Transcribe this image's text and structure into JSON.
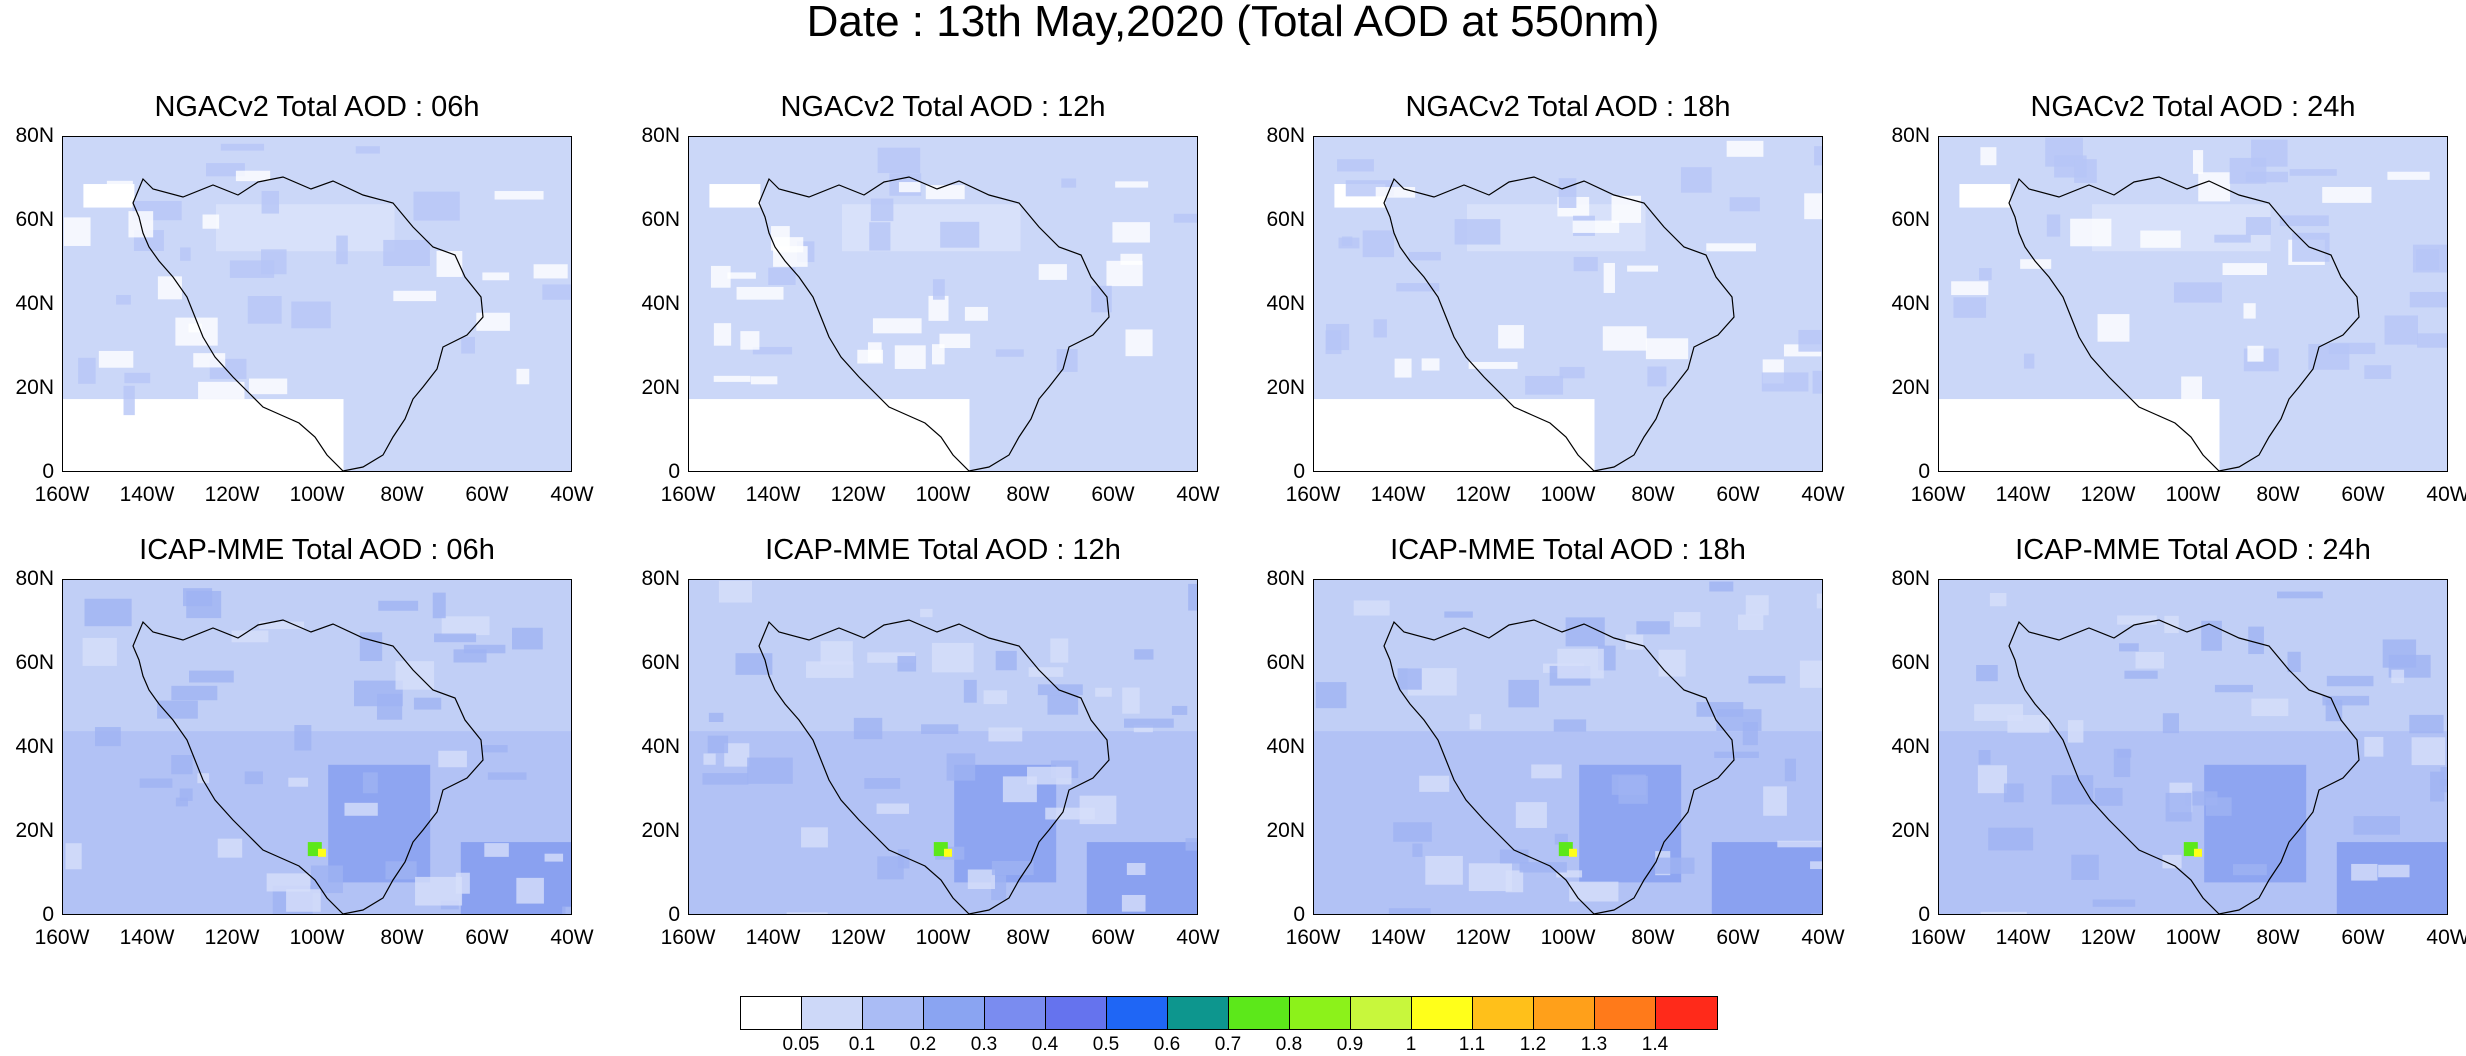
{
  "figure": {
    "title": "Date : 13th May,2020 (Total AOD at 550nm)"
  },
  "axes": {
    "lat_labels": [
      "80N",
      "60N",
      "40N",
      "20N",
      "0"
    ],
    "lon_labels": [
      "160W",
      "140W",
      "120W",
      "100W",
      "80W",
      "60W",
      "40W"
    ],
    "lat_range": [
      0,
      80
    ],
    "lon_range": [
      -160,
      -40
    ]
  },
  "panels": [
    {
      "title": "NGACv2 Total AOD : 06h",
      "model": "NGACv2",
      "hour": "06h"
    },
    {
      "title": "NGACv2 Total AOD : 12h",
      "model": "NGACv2",
      "hour": "12h"
    },
    {
      "title": "NGACv2 Total AOD : 18h",
      "model": "NGACv2",
      "hour": "18h"
    },
    {
      "title": "NGACv2 Total AOD : 24h",
      "model": "NGACv2",
      "hour": "24h"
    },
    {
      "title": "ICAP-MME Total AOD : 06h",
      "model": "ICAP-MME",
      "hour": "06h"
    },
    {
      "title": "ICAP-MME Total AOD : 12h",
      "model": "ICAP-MME",
      "hour": "12h"
    },
    {
      "title": "ICAP-MME Total AOD : 18h",
      "model": "ICAP-MME",
      "hour": "18h"
    },
    {
      "title": "ICAP-MME Total AOD : 24h",
      "model": "ICAP-MME",
      "hour": "24h"
    }
  ],
  "colorbar": {
    "labels": [
      "0.05",
      "0.1",
      "0.2",
      "0.3",
      "0.4",
      "0.5",
      "0.6",
      "0.7",
      "0.8",
      "0.9",
      "1",
      "1.1",
      "1.2",
      "1.3",
      "1.4"
    ],
    "colors": [
      "#ffffff",
      "#cdd8f8",
      "#aabcf5",
      "#8aa4f2",
      "#7a8cf0",
      "#6573ee",
      "#1f66f5",
      "#0d968e",
      "#5ce81a",
      "#8cf21a",
      "#c8f73c",
      "#ffff1a",
      "#ffc01a",
      "#ffa01a",
      "#ff7a1a",
      "#ff2a1a"
    ]
  }
}
